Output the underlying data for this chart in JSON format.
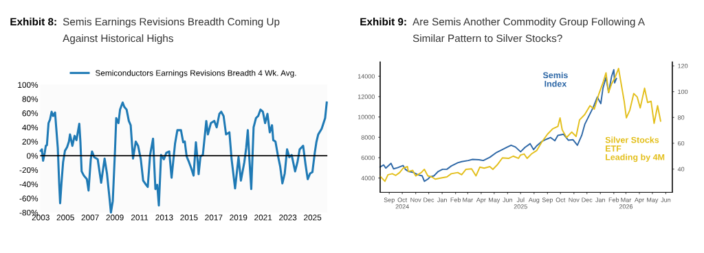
{
  "chart_data": [
    {
      "type": "line",
      "title": "Exhibit 8:",
      "subtitle": "Semis Earnings Revisions Breadth Coming Up\nAgainst Historical Highs",
      "legend": "top",
      "grid": false,
      "xlim": [
        2002.95,
        2026.2
      ],
      "xticks": [
        2003,
        2005,
        2007,
        2009,
        2011,
        2013,
        2015,
        2017,
        2019,
        2021,
        2023,
        2025
      ],
      "ylim": [
        -80,
        100
      ],
      "yticks": [
        {
          "value": -80,
          "label": "-80%"
        },
        {
          "value": -60,
          "label": "-60%"
        },
        {
          "value": -40,
          "label": "-40%"
        },
        {
          "value": -20,
          "label": "-20%"
        },
        {
          "value": 0,
          "label": "0%"
        },
        {
          "value": 20,
          "label": "20%"
        },
        {
          "value": 40,
          "label": "40%"
        },
        {
          "value": 60,
          "label": "60%"
        },
        {
          "value": 80,
          "label": "80%"
        },
        {
          "value": 100,
          "label": "100%"
        }
      ],
      "ref_lines": [
        {
          "axis": "y",
          "value": 0,
          "color": "#000000"
        }
      ],
      "series": [
        {
          "name": "Semiconductors Earnings Revisions Breadth 4 Wk. Avg.",
          "color": "#1f7ab5",
          "x": [
            2003.0,
            2003.09,
            2003.19,
            2003.32,
            2003.41,
            2003.5,
            2003.63,
            2003.75,
            2003.88,
            2004.0,
            2004.16,
            2004.25,
            2004.38,
            2004.49,
            2004.57,
            2004.68,
            2004.81,
            2004.96,
            2005.13,
            2005.28,
            2005.37,
            2005.56,
            2005.74,
            2005.89,
            2006.12,
            2006.21,
            2006.31,
            2006.49,
            2006.73,
            2006.87,
            2007.05,
            2007.15,
            2007.33,
            2007.61,
            2007.89,
            2008.17,
            2008.36,
            2008.55,
            2008.68,
            2008.83,
            2009.01,
            2009.11,
            2009.29,
            2009.42,
            2009.63,
            2009.76,
            2009.95,
            2010.13,
            2010.28,
            2010.47,
            2010.69,
            2010.88,
            2011.1,
            2011.29,
            2011.53,
            2011.66,
            2011.85,
            2012.09,
            2012.28,
            2012.43,
            2012.56,
            2012.74,
            2012.97,
            2013.16,
            2013.4,
            2013.59,
            2013.87,
            2014.06,
            2014.16,
            2014.35,
            2014.53,
            2014.66,
            2014.81,
            2015.0,
            2015.19,
            2015.37,
            2015.56,
            2015.71,
            2015.78,
            2015.93,
            2016.12,
            2016.4,
            2016.53,
            2016.77,
            2017.05,
            2017.24,
            2017.46,
            2017.61,
            2017.8,
            2018.0,
            2018.27,
            2018.45,
            2018.73,
            2019.01,
            2019.2,
            2019.48,
            2019.63,
            2019.76,
            2019.89,
            2020.04,
            2020.23,
            2020.42,
            2020.6,
            2020.79,
            2020.98,
            2021.16,
            2021.35,
            2021.54,
            2021.72,
            2021.82,
            2022.0,
            2022.19,
            2022.38,
            2022.56,
            2022.75,
            2022.94,
            2023.12,
            2023.31,
            2023.59,
            2023.78,
            2023.96,
            2024.24,
            2024.43,
            2024.61,
            2024.8,
            2024.99,
            2025.18,
            2025.31,
            2025.46,
            2025.74,
            2026.02,
            2026.15
          ],
          "values": [
            7,
            9,
            -7,
            4,
            14,
            15,
            46,
            51,
            62,
            56,
            61,
            40,
            11,
            -38,
            -67,
            -38,
            -9,
            7,
            12,
            20,
            30,
            14,
            28,
            22,
            45,
            20,
            -22,
            -28,
            -33,
            -49,
            -5,
            6,
            -2,
            -5,
            -38,
            -4,
            -25,
            -57,
            -80,
            -64,
            7,
            53,
            46,
            65,
            75,
            69,
            65,
            49,
            43,
            -4,
            20,
            14,
            -5,
            -35,
            -41,
            -44,
            1,
            24,
            -47,
            -41,
            -70,
            1,
            -5,
            4,
            6,
            -31,
            17,
            36,
            36,
            36,
            19,
            20,
            -1,
            -9,
            -18,
            -28,
            19,
            -9,
            -26,
            -1,
            1,
            49,
            30,
            46,
            49,
            40,
            59,
            62,
            56,
            30,
            33,
            -5,
            -46,
            -2,
            -35,
            -9,
            11,
            36,
            -5,
            -47,
            40,
            53,
            56,
            65,
            62,
            46,
            59,
            33,
            43,
            22,
            20,
            1,
            -15,
            -39,
            -25,
            9,
            -2,
            1,
            -22,
            -9,
            9,
            14,
            -12,
            -33,
            -25,
            -23,
            4,
            19,
            30,
            38,
            53,
            75
          ]
        }
      ]
    },
    {
      "type": "line",
      "title": "Exhibit 9:",
      "subtitle": "Are Semis Another Commodity Group Following A\nSimilar Pattern to Silver Stocks?",
      "grid": false,
      "xlim": [
        "2024-08-25",
        "2026-06-30"
      ],
      "xticks": [
        {
          "value": "2024-09-15",
          "label": "Sep"
        },
        {
          "value": "2024-10-15",
          "label": "Oct\n2024"
        },
        {
          "value": "2024-11-15",
          "label": "Nov"
        },
        {
          "value": "2024-12-15",
          "label": "Dec"
        },
        {
          "value": "2025-01-15",
          "label": "Jan"
        },
        {
          "value": "2025-02-15",
          "label": "Feb"
        },
        {
          "value": "2025-03-15",
          "label": "Mar"
        },
        {
          "value": "2025-04-15",
          "label": "Apr"
        },
        {
          "value": "2025-05-15",
          "label": "May"
        },
        {
          "value": "2025-06-15",
          "label": "Jun"
        },
        {
          "value": "2025-07-15",
          "label": "Jul\n2025"
        },
        {
          "value": "2025-08-15",
          "label": "Aug"
        },
        {
          "value": "2025-09-15",
          "label": "Sep"
        },
        {
          "value": "2025-10-15",
          "label": "Oct"
        },
        {
          "value": "2025-11-15",
          "label": "Nov"
        },
        {
          "value": "2025-12-15",
          "label": "Dec"
        },
        {
          "value": "2026-01-15",
          "label": "Jan"
        },
        {
          "value": "2026-02-15",
          "label": "Feb"
        },
        {
          "value": "2026-03-15",
          "label": "Mar\n2026"
        },
        {
          "value": "2026-04-15",
          "label": "Apr"
        },
        {
          "value": "2026-05-15",
          "label": "May"
        },
        {
          "value": "2026-06-15",
          "label": "Jun"
        }
      ],
      "ylim": [
        2600,
        15400
      ],
      "yticks": [
        4000,
        6000,
        8000,
        10000,
        12000,
        14000
      ],
      "y2lim": [
        22,
        123
      ],
      "y2ticks": [
        40,
        60,
        80,
        100,
        120
      ],
      "series": [
        {
          "name": "Semis\nIndex",
          "color": "#2d67a6",
          "x": [
            "2024-08-25",
            "2024-09-02",
            "2024-09-07",
            "2024-09-19",
            "2024-09-25",
            "2024-10-04",
            "2024-10-17",
            "2024-10-22",
            "2024-10-29",
            "2024-11-10",
            "2024-11-20",
            "2024-11-30",
            "2024-12-05",
            "2024-12-13",
            "2024-12-18",
            "2024-12-27",
            "2025-01-06",
            "2025-01-16",
            "2025-01-26",
            "2025-02-05",
            "2025-02-20",
            "2025-03-01",
            "2025-03-16",
            "2025-03-26",
            "2025-04-10",
            "2025-04-20",
            "2025-05-05",
            "2025-05-19",
            "2025-06-03",
            "2025-06-13",
            "2025-06-23",
            "2025-07-03",
            "2025-07-15",
            "2025-07-25",
            "2025-08-06",
            "2025-08-14",
            "2025-08-21",
            "2025-09-02",
            "2025-09-12",
            "2025-09-22",
            "2025-10-02",
            "2025-10-09",
            "2025-10-22",
            "2025-11-02",
            "2025-11-13",
            "2025-11-23",
            "2025-12-03",
            "2025-12-10",
            "2025-12-20",
            "2025-12-30",
            "2026-01-08",
            "2026-01-16",
            "2026-01-21",
            "2026-01-28",
            "2026-02-03",
            "2026-02-10",
            "2026-02-15",
            "2026-02-17",
            "2026-02-21"
          ],
          "values": [
            5080,
            5290,
            4970,
            5440,
            4900,
            5010,
            5230,
            4860,
            4650,
            4540,
            4320,
            4210,
            3680,
            3890,
            4110,
            4210,
            4650,
            4860,
            4860,
            5180,
            5500,
            5610,
            5720,
            5830,
            5790,
            5720,
            6040,
            6470,
            6790,
            7010,
            7220,
            7050,
            6580,
            7010,
            7370,
            6790,
            7160,
            7590,
            7800,
            7980,
            7660,
            8190,
            8300,
            7720,
            7760,
            7220,
            8190,
            9270,
            10130,
            10990,
            11950,
            11310,
            12820,
            13890,
            12390,
            14000,
            14640,
            13350,
            13780
          ]
        },
        {
          "name": "Silver Stocks\nETF\nLeading by 4M",
          "color": "#e3bf1c",
          "axis": "y2",
          "x": [
            "2024-08-25",
            "2024-09-05",
            "2024-09-12",
            "2024-09-22",
            "2024-09-30",
            "2024-10-09",
            "2024-10-17",
            "2024-10-27",
            "2024-10-29",
            "2024-11-08",
            "2024-11-15",
            "2024-11-28",
            "2024-12-05",
            "2024-12-13",
            "2024-12-22",
            "2024-12-30",
            "2025-01-11",
            "2025-01-26",
            "2025-02-05",
            "2025-02-20",
            "2025-03-01",
            "2025-03-11",
            "2025-03-24",
            "2025-04-03",
            "2025-04-12",
            "2025-04-22",
            "2025-05-05",
            "2025-05-12",
            "2025-05-22",
            "2025-06-03",
            "2025-06-18",
            "2025-06-28",
            "2025-07-10",
            "2025-07-15",
            "2025-07-23",
            "2025-07-30",
            "2025-08-09",
            "2025-08-21",
            "2025-09-02",
            "2025-09-15",
            "2025-09-27",
            "2025-10-09",
            "2025-10-14",
            "2025-10-19",
            "2025-10-29",
            "2025-11-10",
            "2025-11-20",
            "2025-11-28",
            "2025-12-10",
            "2025-12-22",
            "2026-01-01",
            "2026-01-11",
            "2026-01-21",
            "2026-01-28",
            "2026-02-03",
            "2026-02-10",
            "2026-02-17",
            "2026-02-26",
            "2026-03-04",
            "2026-03-11",
            "2026-03-16",
            "2026-03-24",
            "2026-04-02",
            "2026-04-10",
            "2026-04-17",
            "2026-04-27",
            "2026-05-04",
            "2026-05-12",
            "2026-05-19",
            "2026-05-27",
            "2026-06-03"
          ],
          "values": [
            34.4,
            30.5,
            35.6,
            36.4,
            35.1,
            37.3,
            40.7,
            41.9,
            38.1,
            39.0,
            34.7,
            37.3,
            39.8,
            34.7,
            33.9,
            32.2,
            33.0,
            33.9,
            36.4,
            37.3,
            35.6,
            39.8,
            40.2,
            34.7,
            41.5,
            40.7,
            41.9,
            39.8,
            43.2,
            48.7,
            48.3,
            50.0,
            48.3,
            50.9,
            51.7,
            48.3,
            51.7,
            54.3,
            61.0,
            67.0,
            71.2,
            73.0,
            79.7,
            70.4,
            64.5,
            68.7,
            65.3,
            78.1,
            82.3,
            89.1,
            86.5,
            97.6,
            106.9,
            114.6,
            99.3,
            106.1,
            110.3,
            118.0,
            106.1,
            92.5,
            79.7,
            85.7,
            98.5,
            95.9,
            87.4,
            102.7,
            91.6,
            92.5,
            75.5,
            89.1,
            77.2
          ]
        }
      ]
    }
  ]
}
